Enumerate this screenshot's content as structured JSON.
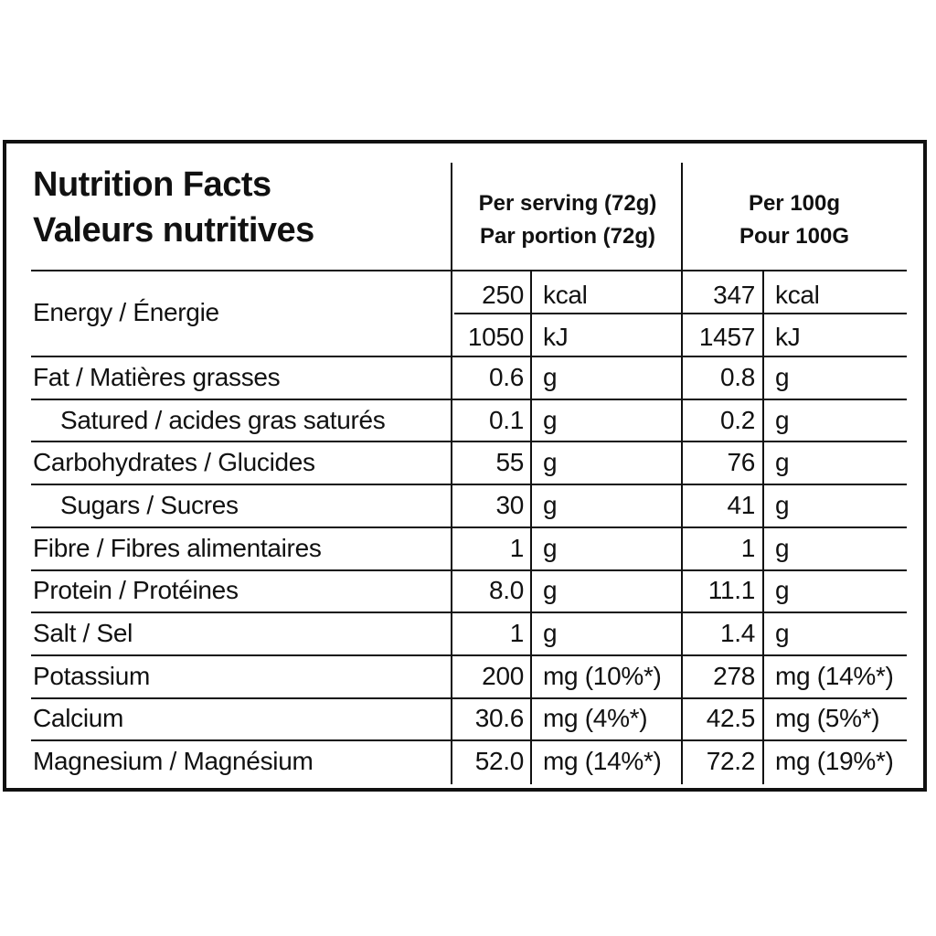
{
  "title": {
    "en": "Nutrition Facts",
    "fr": "Valeurs nutritives"
  },
  "columns": {
    "per_serving": {
      "line1": "Per serving (72g)",
      "line2": "Par portion (72g)"
    },
    "per_100g": {
      "line1": "Per 100g",
      "line2": "Pour 100G"
    }
  },
  "rows": [
    {
      "label": "Energy / Énergie",
      "serving_value": "250",
      "serving_unit": "kcal",
      "per100_value": "347",
      "per100_unit": "kcal"
    },
    {
      "label": "",
      "serving_value": "1050",
      "serving_unit": "kJ",
      "per100_value": "1457",
      "per100_unit": "kJ"
    },
    {
      "label": "Fat / Matières grasses",
      "serving_value": "0.6",
      "serving_unit": "g",
      "per100_value": "0.8",
      "per100_unit": "g"
    },
    {
      "label": "Satured / acides gras saturés",
      "serving_value": "0.1",
      "serving_unit": "g",
      "per100_value": "0.2",
      "per100_unit": "g"
    },
    {
      "label": "Carbohydrates / Glucides",
      "serving_value": "55",
      "serving_unit": "g",
      "per100_value": "76",
      "per100_unit": "g"
    },
    {
      "label": "Sugars / Sucres",
      "serving_value": "30",
      "serving_unit": "g",
      "per100_value": "41",
      "per100_unit": "g"
    },
    {
      "label": "Fibre / Fibres alimentaires",
      "serving_value": "1",
      "serving_unit": "g",
      "per100_value": "1",
      "per100_unit": "g"
    },
    {
      "label": "Protein / Protéines",
      "serving_value": "8.0",
      "serving_unit": "g",
      "per100_value": "11.1",
      "per100_unit": "g"
    },
    {
      "label": "Salt / Sel",
      "serving_value": "1",
      "serving_unit": "g",
      "per100_value": "1.4",
      "per100_unit": "g"
    },
    {
      "label": "Potassium",
      "serving_value": "200",
      "serving_unit": "mg (10%*)",
      "per100_value": "278",
      "per100_unit": "mg (14%*)"
    },
    {
      "label": "Calcium",
      "serving_value": "30.6",
      "serving_unit": "mg (4%*)",
      "per100_value": "42.5",
      "per100_unit": "mg (5%*)"
    },
    {
      "label": "Magnesium / Magnésium",
      "serving_value": "52.0",
      "serving_unit": "mg (14%*)",
      "per100_value": "72.2",
      "per100_unit": "mg (19%*)"
    }
  ]
}
